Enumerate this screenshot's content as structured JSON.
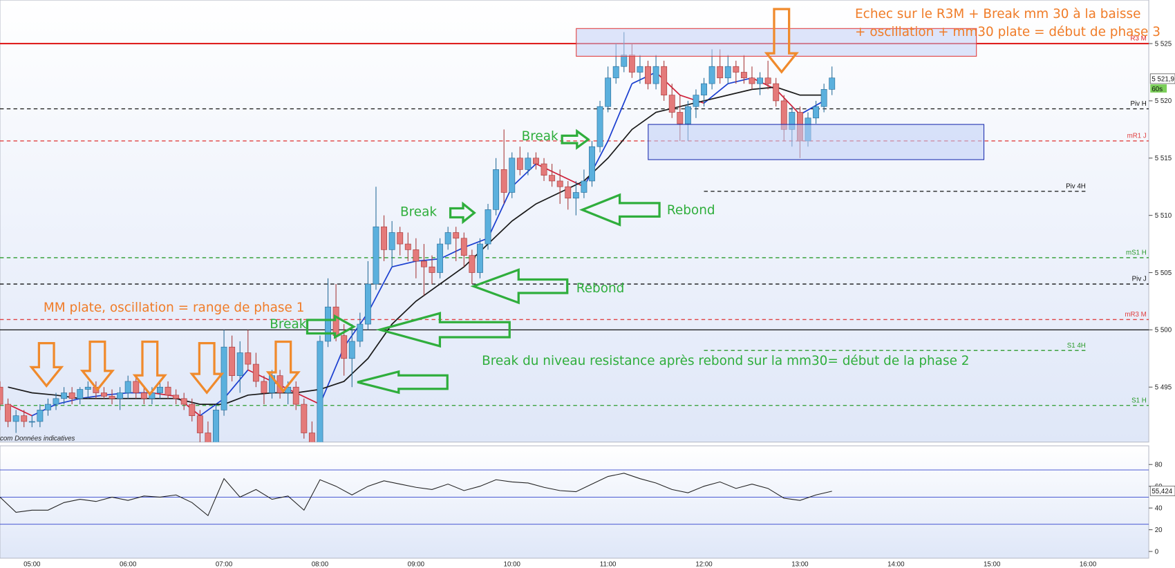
{
  "chart_data": [
    {
      "type": "candlestick",
      "xlim": [
        "04:40",
        "16:38"
      ],
      "ylim": [
        5490.2,
        5528.8
      ],
      "yticks": [
        {
          "value": 5495,
          "label": "5 495"
        },
        {
          "value": 5500,
          "label": "5 500"
        },
        {
          "value": 5505,
          "label": "5 505"
        },
        {
          "value": 5510,
          "label": "5 510"
        },
        {
          "value": 5515,
          "label": "5 515"
        },
        {
          "value": 5520,
          "label": "5 520"
        },
        {
          "value": 5525,
          "label": "5 525"
        }
      ],
      "up_color": "#5bb0dd",
      "down_color": "#e47a7a",
      "x": [
        "04:40",
        "04:45",
        "04:50",
        "04:55",
        "05:00",
        "05:05",
        "05:10",
        "05:15",
        "05:20",
        "05:25",
        "05:30",
        "05:35",
        "05:40",
        "05:45",
        "05:50",
        "05:55",
        "06:00",
        "06:05",
        "06:10",
        "06:15",
        "06:20",
        "06:25",
        "06:30",
        "06:35",
        "06:40",
        "06:45",
        "06:50",
        "06:55",
        "07:00",
        "07:05",
        "07:10",
        "07:15",
        "07:20",
        "07:25",
        "07:30",
        "07:35",
        "07:40",
        "07:45",
        "07:50",
        "07:55",
        "08:00",
        "08:05",
        "08:10",
        "08:15",
        "08:20",
        "08:25",
        "08:30",
        "08:35",
        "08:40",
        "08:45",
        "08:50",
        "08:55",
        "09:00",
        "09:05",
        "09:10",
        "09:15",
        "09:20",
        "09:25",
        "09:30",
        "09:35",
        "09:40",
        "09:45",
        "09:50",
        "09:55",
        "10:00",
        "10:05",
        "10:10",
        "10:15",
        "10:20",
        "10:25",
        "10:30",
        "10:35",
        "10:40",
        "10:45",
        "10:50",
        "10:55",
        "11:00",
        "11:05",
        "11:10",
        "11:15",
        "11:20",
        "11:25",
        "11:30",
        "11:35",
        "11:40",
        "11:45",
        "11:50",
        "11:55",
        "12:00",
        "12:05",
        "12:10",
        "12:15",
        "12:20",
        "12:25",
        "12:30",
        "12:35",
        "12:40",
        "12:45",
        "12:50",
        "12:55",
        "13:00",
        "13:05",
        "13:10",
        "13:15",
        "13:20"
      ],
      "ohlc": [
        [
          5495,
          5495.5,
          5493,
          5493.5
        ],
        [
          5493.5,
          5494,
          5491.5,
          5492
        ],
        [
          5492,
          5493,
          5491,
          5492.5
        ],
        [
          5492.5,
          5493,
          5491.5,
          5492
        ],
        [
          5492,
          5492.5,
          5491.5,
          5492
        ],
        [
          5492,
          5493.5,
          5491.5,
          5493
        ],
        [
          5493,
          5494,
          5492.5,
          5493.5
        ],
        [
          5493.5,
          5494.5,
          5493,
          5494
        ],
        [
          5494,
          5495,
          5493.5,
          5494.5
        ],
        [
          5494.5,
          5495,
          5493.5,
          5494
        ],
        [
          5494,
          5495,
          5493.5,
          5494.8
        ],
        [
          5494.8,
          5495.5,
          5494,
          5495
        ],
        [
          5495,
          5495.5,
          5494,
          5494.5
        ],
        [
          5494.5,
          5495,
          5494,
          5494.2
        ],
        [
          5494.2,
          5494.8,
          5493.5,
          5494
        ],
        [
          5494,
          5495,
          5493,
          5494.5
        ],
        [
          5494.5,
          5496,
          5494,
          5495.5
        ],
        [
          5495.5,
          5496,
          5494,
          5494.5
        ],
        [
          5494.5,
          5495,
          5493.5,
          5494
        ],
        [
          5494,
          5495,
          5493.5,
          5494.5
        ],
        [
          5494.5,
          5495.5,
          5494,
          5495
        ],
        [
          5495,
          5495.5,
          5494,
          5494.3
        ],
        [
          5494.3,
          5494.8,
          5493.5,
          5494
        ],
        [
          5494,
          5494.5,
          5493,
          5493.5
        ],
        [
          5493.5,
          5494,
          5492,
          5492.5
        ],
        [
          5492.5,
          5493,
          5490,
          5491
        ],
        [
          5491,
          5492,
          5489.5,
          5490
        ],
        [
          5490,
          5493.5,
          5489.5,
          5493
        ],
        [
          5493,
          5500,
          5492.5,
          5498.5
        ],
        [
          5498.5,
          5499.5,
          5495.5,
          5496
        ],
        [
          5496,
          5499,
          5494.5,
          5498
        ],
        [
          5498,
          5500,
          5496.5,
          5497
        ],
        [
          5497,
          5498,
          5495,
          5495.5
        ],
        [
          5495.5,
          5496,
          5493.5,
          5494.5
        ],
        [
          5494.5,
          5496.5,
          5494,
          5496
        ],
        [
          5496,
          5496.5,
          5494,
          5494.5
        ],
        [
          5494.5,
          5495.5,
          5493.5,
          5495
        ],
        [
          5495,
          5495.5,
          5493,
          5493.5
        ],
        [
          5493.5,
          5494,
          5490.5,
          5491
        ],
        [
          5491,
          5492,
          5489.5,
          5490
        ],
        [
          5490,
          5499.5,
          5489.5,
          5499
        ],
        [
          5499,
          5504.5,
          5498.5,
          5502
        ],
        [
          5502,
          5504,
          5499,
          5499.5
        ],
        [
          5499.5,
          5500.5,
          5496,
          5497.5
        ],
        [
          5497.5,
          5500.5,
          5495,
          5499
        ],
        [
          5499,
          5501.5,
          5498.5,
          5500.5
        ],
        [
          5500.5,
          5506,
          5500,
          5504
        ],
        [
          5504,
          5512.5,
          5503.5,
          5509
        ],
        [
          5509,
          5510,
          5506,
          5507
        ],
        [
          5507,
          5509.5,
          5505.5,
          5508.5
        ],
        [
          5508.5,
          5509,
          5506.5,
          5507.5
        ],
        [
          5507.5,
          5508.5,
          5506,
          5507
        ],
        [
          5507,
          5508,
          5504.5,
          5506
        ],
        [
          5506,
          5507.5,
          5503,
          5505.5
        ],
        [
          5505.5,
          5506.5,
          5504,
          5505
        ],
        [
          5505,
          5508,
          5504.5,
          5507.5
        ],
        [
          5507.5,
          5509,
          5507,
          5508.5
        ],
        [
          5508.5,
          5509,
          5506,
          5508
        ],
        [
          5508,
          5508.5,
          5505.5,
          5506.5
        ],
        [
          5506.5,
          5507,
          5504,
          5505
        ],
        [
          5505,
          5508,
          5504.5,
          5507.5
        ],
        [
          5507.5,
          5511,
          5507,
          5510.5
        ],
        [
          5510.5,
          5515,
          5510,
          5514
        ],
        [
          5514,
          5517.5,
          5511,
          5512
        ],
        [
          5512,
          5515.5,
          5511.5,
          5515
        ],
        [
          5515,
          5516,
          5513.5,
          5514
        ],
        [
          5514,
          5515.5,
          5513.5,
          5515
        ],
        [
          5515,
          5515.5,
          5514,
          5514.5
        ],
        [
          5514.5,
          5515,
          5513,
          5513.5
        ],
        [
          5513.5,
          5514.5,
          5512.5,
          5513
        ],
        [
          5513,
          5514,
          5511,
          5512.5
        ],
        [
          5512.5,
          5513,
          5510.5,
          5511.5
        ],
        [
          5511.5,
          5513,
          5510,
          5512
        ],
        [
          5512,
          5514,
          5511.5,
          5513
        ],
        [
          5513,
          5516.5,
          5512.5,
          5516
        ],
        [
          5516,
          5520,
          5515.5,
          5519.5
        ],
        [
          5519.5,
          5523,
          5519,
          5522
        ],
        [
          5522,
          5525,
          5521.5,
          5523
        ],
        [
          5523,
          5526,
          5522.5,
          5524
        ],
        [
          5524,
          5525,
          5522,
          5522.5
        ],
        [
          5522.5,
          5524,
          5521.5,
          5523
        ],
        [
          5523,
          5523.5,
          5521,
          5521.5
        ],
        [
          5521.5,
          5524,
          5521,
          5523
        ],
        [
          5523,
          5523.5,
          5520,
          5520.5
        ],
        [
          5520.5,
          5521.5,
          5518.5,
          5519
        ],
        [
          5519,
          5520.5,
          5516.5,
          5518
        ],
        [
          5518,
          5520,
          5516.5,
          5519.5
        ],
        [
          5519.5,
          5521,
          5518.5,
          5520.5
        ],
        [
          5520.5,
          5522,
          5519.5,
          5521.5
        ],
        [
          5521.5,
          5524.5,
          5521,
          5523
        ],
        [
          5523,
          5524.5,
          5521.5,
          5522
        ],
        [
          5522,
          5524,
          5521.5,
          5523
        ],
        [
          5523,
          5523.5,
          5521.5,
          5522.5
        ],
        [
          5522.5,
          5524,
          5521.5,
          5522
        ],
        [
          5522,
          5523,
          5521,
          5521.5
        ],
        [
          5521.5,
          5522.5,
          5520.5,
          5522
        ],
        [
          5522,
          5523.5,
          5521,
          5521.5
        ],
        [
          5521.5,
          5522,
          5519.5,
          5520
        ],
        [
          5520,
          5520.5,
          5516.5,
          5517.5
        ],
        [
          5517.5,
          5519.5,
          5516,
          5519
        ],
        [
          5519,
          5519.5,
          5515,
          5516.5
        ],
        [
          5516.5,
          5519,
          5516,
          5518.5
        ],
        [
          5518.5,
          5520,
          5518,
          5519.5
        ],
        [
          5519.5,
          5521.5,
          5519,
          5521
        ],
        [
          5521,
          5523,
          5520.5,
          5522
        ]
      ],
      "moving_averages": {
        "x": [
          "04:45",
          "05:00",
          "05:15",
          "05:30",
          "05:45",
          "06:00",
          "06:15",
          "06:30",
          "06:45",
          "07:00",
          "07:15",
          "07:30",
          "07:45",
          "08:00",
          "08:15",
          "08:30",
          "08:45",
          "09:00",
          "09:15",
          "09:30",
          "09:45",
          "10:00",
          "10:15",
          "10:30",
          "10:45",
          "11:00",
          "11:15",
          "11:30",
          "11:45",
          "12:00",
          "12:15",
          "12:30",
          "12:45",
          "13:00",
          "13:15"
        ],
        "series": [
          {
            "color": "#1b3fd0",
            "down_color": "#d0203a",
            "values": [
              5493.5,
              5492.5,
              5493.5,
              5494,
              5494.3,
              5494.5,
              5494.5,
              5494.2,
              5492.5,
              5494,
              5496.5,
              5495.5,
              5494.5,
              5493.5,
              5498.5,
              5501.5,
              5505.5,
              5506,
              5506.2,
              5507.2,
              5508,
              5512.5,
              5514.5,
              5513.5,
              5512.5,
              5516.5,
              5521.5,
              5522.5,
              5520.5,
              5519.8,
              5521.5,
              5522,
              5521,
              5518.8,
              5520
            ]
          },
          {
            "color": "#1a1a1a",
            "values": [
              5495,
              5494.5,
              5494.3,
              5494,
              5494,
              5494,
              5494,
              5494,
              5493.5,
              5493.5,
              5494.3,
              5494.5,
              5494.5,
              5494.8,
              5495.5,
              5497.5,
              5500.5,
              5502.5,
              5504,
              5505.5,
              5507.5,
              5509.5,
              5511,
              5512,
              5513,
              5515,
              5517.5,
              5519,
              5519.5,
              5520,
              5520.5,
              5521,
              5521.2,
              5520.5,
              5520.5
            ]
          }
        ]
      },
      "levels": [
        {
          "name": "R3 M",
          "value": 5525,
          "color": "#e02020",
          "style": "solid"
        },
        {
          "name": "Piv H",
          "value": 5519.3,
          "color": "#111111",
          "style": "dashed"
        },
        {
          "name": "mR1 J",
          "value": 5516.5,
          "color": "#e04040",
          "style": "dashed"
        },
        {
          "name": "Piv 4H",
          "value": 5512.1,
          "color": "#111111",
          "style": "dashed",
          "from": "12:00",
          "to": "16:00"
        },
        {
          "name": "mS1 H",
          "value": 5506.3,
          "color": "#2a9a2a",
          "style": "dashed"
        },
        {
          "name": "Piv J",
          "value": 5504,
          "color": "#111111",
          "style": "dashed"
        },
        {
          "name": "mR3 M",
          "value": 5500.9,
          "color": "#e04040",
          "style": "dashed"
        },
        {
          "value": 5500,
          "color": "#111111",
          "style": "solid"
        },
        {
          "name": "S1 4H",
          "value": 5498.2,
          "color": "#2a9a2a",
          "style": "dashed",
          "from": "12:00",
          "to": "16:00"
        },
        {
          "name": "S1 H",
          "value": 5493.4,
          "color": "#2a9a2a",
          "style": "dashed"
        }
      ],
      "price_label": {
        "value": 5521.9,
        "label": "5 521,9"
      },
      "timer": "60s",
      "source": "com  Données indicatives"
    },
    {
      "type": "line",
      "xlim": [
        "04:40",
        "16:38"
      ],
      "ylim": [
        -6.2,
        97.2
      ],
      "yticks": [
        0,
        20,
        40,
        60,
        80
      ],
      "levels": [
        75,
        50,
        25
      ],
      "level_color": "#3344cc",
      "color": "#222222",
      "xticks": [
        "05:00",
        "06:00",
        "07:00",
        "08:00",
        "09:00",
        "10:00",
        "11:00",
        "12:00",
        "13:00",
        "14:00",
        "15:00",
        "16:00"
      ],
      "x": [
        "04:40",
        "04:50",
        "05:00",
        "05:10",
        "05:20",
        "05:30",
        "05:40",
        "05:50",
        "06:00",
        "06:10",
        "06:20",
        "06:30",
        "06:40",
        "06:50",
        "07:00",
        "07:10",
        "07:20",
        "07:30",
        "07:40",
        "07:50",
        "08:00",
        "08:10",
        "08:20",
        "08:30",
        "08:40",
        "08:50",
        "09:00",
        "09:10",
        "09:20",
        "09:30",
        "09:40",
        "09:50",
        "10:00",
        "10:10",
        "10:20",
        "10:30",
        "10:40",
        "10:50",
        "11:00",
        "11:10",
        "11:20",
        "11:30",
        "11:40",
        "11:50",
        "12:00",
        "12:10",
        "12:20",
        "12:30",
        "12:40",
        "12:50",
        "13:00",
        "13:10",
        "13:20"
      ],
      "values": [
        50,
        36,
        38,
        38,
        45,
        48,
        46,
        50,
        47,
        51,
        50,
        52,
        45,
        33,
        67,
        50,
        57,
        48,
        51,
        38,
        66,
        60,
        52,
        60,
        65,
        62,
        59,
        57,
        62,
        56,
        60,
        66,
        64,
        63,
        59,
        56,
        55,
        62,
        69,
        72,
        67,
        63,
        57,
        54,
        60,
        64,
        58,
        62,
        58,
        49,
        47,
        52,
        55.424
      ],
      "value_labels": [
        null,
        null,
        null,
        null,
        null,
        null,
        null,
        null,
        null,
        null,
        null,
        null,
        null,
        null,
        null,
        null,
        null,
        null,
        null,
        null,
        null,
        null,
        null,
        null,
        null,
        null,
        null,
        null,
        null,
        null,
        null,
        null,
        null,
        null,
        null,
        null,
        null,
        null,
        null,
        null,
        null,
        null,
        null,
        null,
        null,
        null,
        null,
        null,
        null,
        null,
        null,
        null,
        "55,424"
      ]
    }
  ],
  "annotations": [
    "Echec sur le R3M + Break mm 30 à la baisse",
    "+ oscillation + mm30 plate = début de phase 3",
    "MM plate, oscillation = range de phase 1",
    "Break",
    "Break",
    "Break",
    "Rebond",
    "Rebond",
    "Break du niveau resistance après rebond sur la mm30= début de la phase 2"
  ]
}
